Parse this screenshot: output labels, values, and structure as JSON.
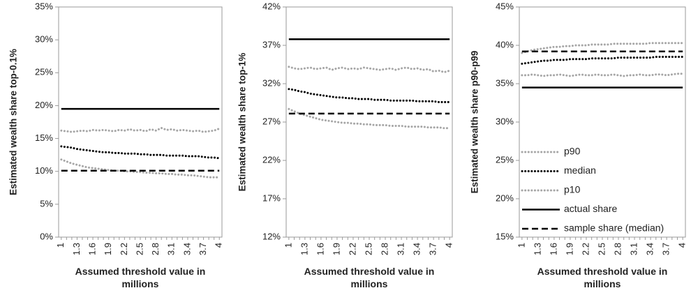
{
  "chart_data": [
    {
      "type": "line",
      "y_label": "Estimated wealth share top-0.1%",
      "x_label": "Assumed threshold value in millions",
      "categories": [
        "1",
        null,
        null,
        "1.3",
        null,
        null,
        "1.6",
        null,
        null,
        "1.9",
        null,
        null,
        "2.2",
        null,
        null,
        "2.5",
        null,
        null,
        "2.8",
        null,
        null,
        "3.1",
        null,
        null,
        "3.4",
        null,
        null,
        "3.7",
        null,
        null,
        "4"
      ],
      "ylim": [
        0,
        35
      ],
      "yticks": [
        {
          "value": 0,
          "label": "0%"
        },
        {
          "value": 5,
          "label": "5%"
        },
        {
          "value": 10,
          "label": "10%"
        },
        {
          "value": 15,
          "label": "15%"
        },
        {
          "value": 20,
          "label": "20%"
        },
        {
          "value": 25,
          "label": "25%"
        },
        {
          "value": 30,
          "label": "30%"
        },
        {
          "value": 35,
          "label": "35%"
        }
      ],
      "series": [
        {
          "name": "p90",
          "color": "#a6a6a6",
          "style": "dotted",
          "values": [
            16.2,
            16.1,
            16.0,
            16.1,
            16.2,
            16.1,
            16.3,
            16.2,
            16.3,
            16.2,
            16.1,
            16.3,
            16.2,
            16.4,
            16.2,
            16.3,
            16.1,
            16.4,
            16.2,
            16.6,
            16.3,
            16.4,
            16.2,
            16.3,
            16.2,
            16.1,
            16.2,
            16.0,
            16.1,
            16.2,
            16.5
          ]
        },
        {
          "name": "median",
          "color": "#000000",
          "style": "dotted",
          "values": [
            13.8,
            13.7,
            13.6,
            13.4,
            13.3,
            13.2,
            13.1,
            13.0,
            12.9,
            12.9,
            12.8,
            12.8,
            12.7,
            12.7,
            12.7,
            12.6,
            12.6,
            12.5,
            12.5,
            12.5,
            12.4,
            12.4,
            12.4,
            12.4,
            12.3,
            12.3,
            12.3,
            12.2,
            12.1,
            12.1,
            12.0
          ]
        },
        {
          "name": "p10",
          "color": "#a6a6a6",
          "style": "dotted",
          "values": [
            11.8,
            11.5,
            11.2,
            11.0,
            10.8,
            10.6,
            10.5,
            10.4,
            10.3,
            10.2,
            10.1,
            10.1,
            10.0,
            10.0,
            9.9,
            9.9,
            9.8,
            9.8,
            9.7,
            9.7,
            9.6,
            9.6,
            9.5,
            9.5,
            9.4,
            9.4,
            9.3,
            9.2,
            9.1,
            9.1,
            9.1
          ]
        },
        {
          "name": "actual share",
          "color": "#000000",
          "style": "solid",
          "values": [
            19.5,
            19.5,
            19.5,
            19.5,
            19.5,
            19.5,
            19.5,
            19.5,
            19.5,
            19.5,
            19.5,
            19.5,
            19.5,
            19.5,
            19.5,
            19.5,
            19.5,
            19.5,
            19.5,
            19.5,
            19.5,
            19.5,
            19.5,
            19.5,
            19.5,
            19.5,
            19.5,
            19.5,
            19.5,
            19.5,
            19.5
          ]
        },
        {
          "name": "sample share (median)",
          "color": "#000000",
          "style": "dashed",
          "values": [
            10.1,
            10.1,
            10.1,
            10.1,
            10.1,
            10.1,
            10.1,
            10.1,
            10.1,
            10.1,
            10.1,
            10.1,
            10.1,
            10.1,
            10.1,
            10.1,
            10.1,
            10.1,
            10.1,
            10.1,
            10.1,
            10.1,
            10.1,
            10.1,
            10.1,
            10.1,
            10.1,
            10.1,
            10.1,
            10.1,
            10.1
          ]
        }
      ]
    },
    {
      "type": "line",
      "y_label": "Estimated wealth share top-1%",
      "x_label": "Assumed threshold value in millions",
      "categories": [
        "1",
        null,
        null,
        "1.3",
        null,
        null,
        "1.6",
        null,
        null,
        "1.9",
        null,
        null,
        "2.2",
        null,
        null,
        "2.5",
        null,
        null,
        "2.8",
        null,
        null,
        "3.1",
        null,
        null,
        "3.4",
        null,
        null,
        "3.7",
        null,
        null,
        "4"
      ],
      "ylim": [
        12,
        42
      ],
      "yticks": [
        {
          "value": 12,
          "label": "12%"
        },
        {
          "value": 17,
          "label": "17%"
        },
        {
          "value": 22,
          "label": "22%"
        },
        {
          "value": 27,
          "label": "27%"
        },
        {
          "value": 32,
          "label": "32%"
        },
        {
          "value": 37,
          "label": "37%"
        },
        {
          "value": 42,
          "label": "42%"
        }
      ],
      "series": [
        {
          "name": "p90",
          "color": "#a6a6a6",
          "style": "dotted",
          "values": [
            34.2,
            34.0,
            33.9,
            34.0,
            34.1,
            33.9,
            34.0,
            34.1,
            33.8,
            34.0,
            34.1,
            33.9,
            34.0,
            33.9,
            34.1,
            34.0,
            33.9,
            33.8,
            33.9,
            34.0,
            33.8,
            34.0,
            34.1,
            33.9,
            34.0,
            33.8,
            33.9,
            33.6,
            33.7,
            33.5,
            33.7
          ]
        },
        {
          "name": "median",
          "color": "#000000",
          "style": "dotted",
          "values": [
            31.3,
            31.2,
            31.0,
            30.9,
            30.7,
            30.6,
            30.5,
            30.4,
            30.3,
            30.2,
            30.2,
            30.1,
            30.1,
            30.0,
            30.0,
            30.0,
            29.9,
            29.9,
            29.9,
            29.8,
            29.8,
            29.8,
            29.8,
            29.8,
            29.7,
            29.7,
            29.7,
            29.7,
            29.6,
            29.6,
            29.6
          ]
        },
        {
          "name": "p10",
          "color": "#a6a6a6",
          "style": "dotted",
          "values": [
            28.7,
            28.4,
            28.1,
            27.9,
            27.7,
            27.5,
            27.3,
            27.2,
            27.1,
            27.0,
            26.9,
            26.9,
            26.8,
            26.8,
            26.7,
            26.7,
            26.6,
            26.6,
            26.6,
            26.5,
            26.5,
            26.5,
            26.4,
            26.4,
            26.4,
            26.4,
            26.3,
            26.3,
            26.3,
            26.2,
            26.2
          ]
        },
        {
          "name": "actual share",
          "color": "#000000",
          "style": "solid",
          "values": [
            37.8,
            37.8,
            37.8,
            37.8,
            37.8,
            37.8,
            37.8,
            37.8,
            37.8,
            37.8,
            37.8,
            37.8,
            37.8,
            37.8,
            37.8,
            37.8,
            37.8,
            37.8,
            37.8,
            37.8,
            37.8,
            37.8,
            37.8,
            37.8,
            37.8,
            37.8,
            37.8,
            37.8,
            37.8,
            37.8,
            37.8
          ]
        },
        {
          "name": "sample share (median)",
          "color": "#000000",
          "style": "dashed",
          "values": [
            28.1,
            28.1,
            28.1,
            28.1,
            28.1,
            28.1,
            28.1,
            28.1,
            28.1,
            28.1,
            28.1,
            28.1,
            28.1,
            28.1,
            28.1,
            28.1,
            28.1,
            28.1,
            28.1,
            28.1,
            28.1,
            28.1,
            28.1,
            28.1,
            28.1,
            28.1,
            28.1,
            28.1,
            28.1,
            28.1,
            28.1
          ]
        }
      ]
    },
    {
      "type": "line",
      "y_label": "Estimated wealth share p90-p99",
      "x_label": "Assumed threshold value in millions",
      "legend": "lower left",
      "categories": [
        "1",
        null,
        null,
        "1.3",
        null,
        null,
        "1.6",
        null,
        null,
        "1.9",
        null,
        null,
        "2.2",
        null,
        null,
        "2.5",
        null,
        null,
        "2.8",
        null,
        null,
        "3.1",
        null,
        null,
        "3.4",
        null,
        null,
        "3.7",
        null,
        null,
        "4"
      ],
      "ylim": [
        15,
        45
      ],
      "yticks": [
        {
          "value": 15,
          "label": "15%"
        },
        {
          "value": 20,
          "label": "20%"
        },
        {
          "value": 25,
          "label": "25%"
        },
        {
          "value": 30,
          "label": "30%"
        },
        {
          "value": 35,
          "label": "35%"
        },
        {
          "value": 40,
          "label": "40%"
        },
        {
          "value": 45,
          "label": "45%"
        }
      ],
      "series": [
        {
          "name": "p90",
          "color": "#a6a6a6",
          "style": "dotted",
          "values": [
            39.0,
            39.2,
            39.4,
            39.5,
            39.6,
            39.7,
            39.8,
            39.8,
            39.9,
            39.9,
            40.0,
            40.0,
            40.0,
            40.1,
            40.1,
            40.1,
            40.1,
            40.2,
            40.2,
            40.2,
            40.2,
            40.2,
            40.2,
            40.2,
            40.3,
            40.3,
            40.3,
            40.3,
            40.3,
            40.3,
            40.3
          ]
        },
        {
          "name": "median",
          "color": "#000000",
          "style": "dotted",
          "values": [
            37.6,
            37.7,
            37.8,
            37.9,
            38.0,
            38.0,
            38.1,
            38.1,
            38.1,
            38.2,
            38.2,
            38.2,
            38.2,
            38.3,
            38.3,
            38.3,
            38.3,
            38.3,
            38.4,
            38.4,
            38.4,
            38.4,
            38.4,
            38.4,
            38.4,
            38.5,
            38.5,
            38.5,
            38.5,
            38.5,
            38.5
          ]
        },
        {
          "name": "p10",
          "color": "#a6a6a6",
          "style": "dotted",
          "values": [
            36.1,
            36.1,
            36.2,
            36.1,
            36.0,
            36.1,
            36.1,
            36.2,
            36.1,
            36.0,
            36.1,
            36.2,
            36.1,
            36.1,
            36.2,
            36.1,
            36.1,
            36.2,
            36.1,
            36.0,
            36.1,
            36.1,
            36.2,
            36.1,
            36.1,
            36.2,
            36.2,
            36.1,
            36.2,
            36.3,
            36.3
          ]
        },
        {
          "name": "actual share",
          "color": "#000000",
          "style": "solid",
          "values": [
            34.5,
            34.5,
            34.5,
            34.5,
            34.5,
            34.5,
            34.5,
            34.5,
            34.5,
            34.5,
            34.5,
            34.5,
            34.5,
            34.5,
            34.5,
            34.5,
            34.5,
            34.5,
            34.5,
            34.5,
            34.5,
            34.5,
            34.5,
            34.5,
            34.5,
            34.5,
            34.5,
            34.5,
            34.5,
            34.5,
            34.5
          ]
        },
        {
          "name": "sample share (median)",
          "color": "#000000",
          "style": "dashed",
          "values": [
            39.2,
            39.2,
            39.2,
            39.2,
            39.2,
            39.2,
            39.2,
            39.2,
            39.2,
            39.2,
            39.2,
            39.2,
            39.2,
            39.2,
            39.2,
            39.2,
            39.2,
            39.2,
            39.2,
            39.2,
            39.2,
            39.2,
            39.2,
            39.2,
            39.2,
            39.2,
            39.2,
            39.2,
            39.2,
            39.2,
            39.2
          ]
        }
      ]
    }
  ]
}
